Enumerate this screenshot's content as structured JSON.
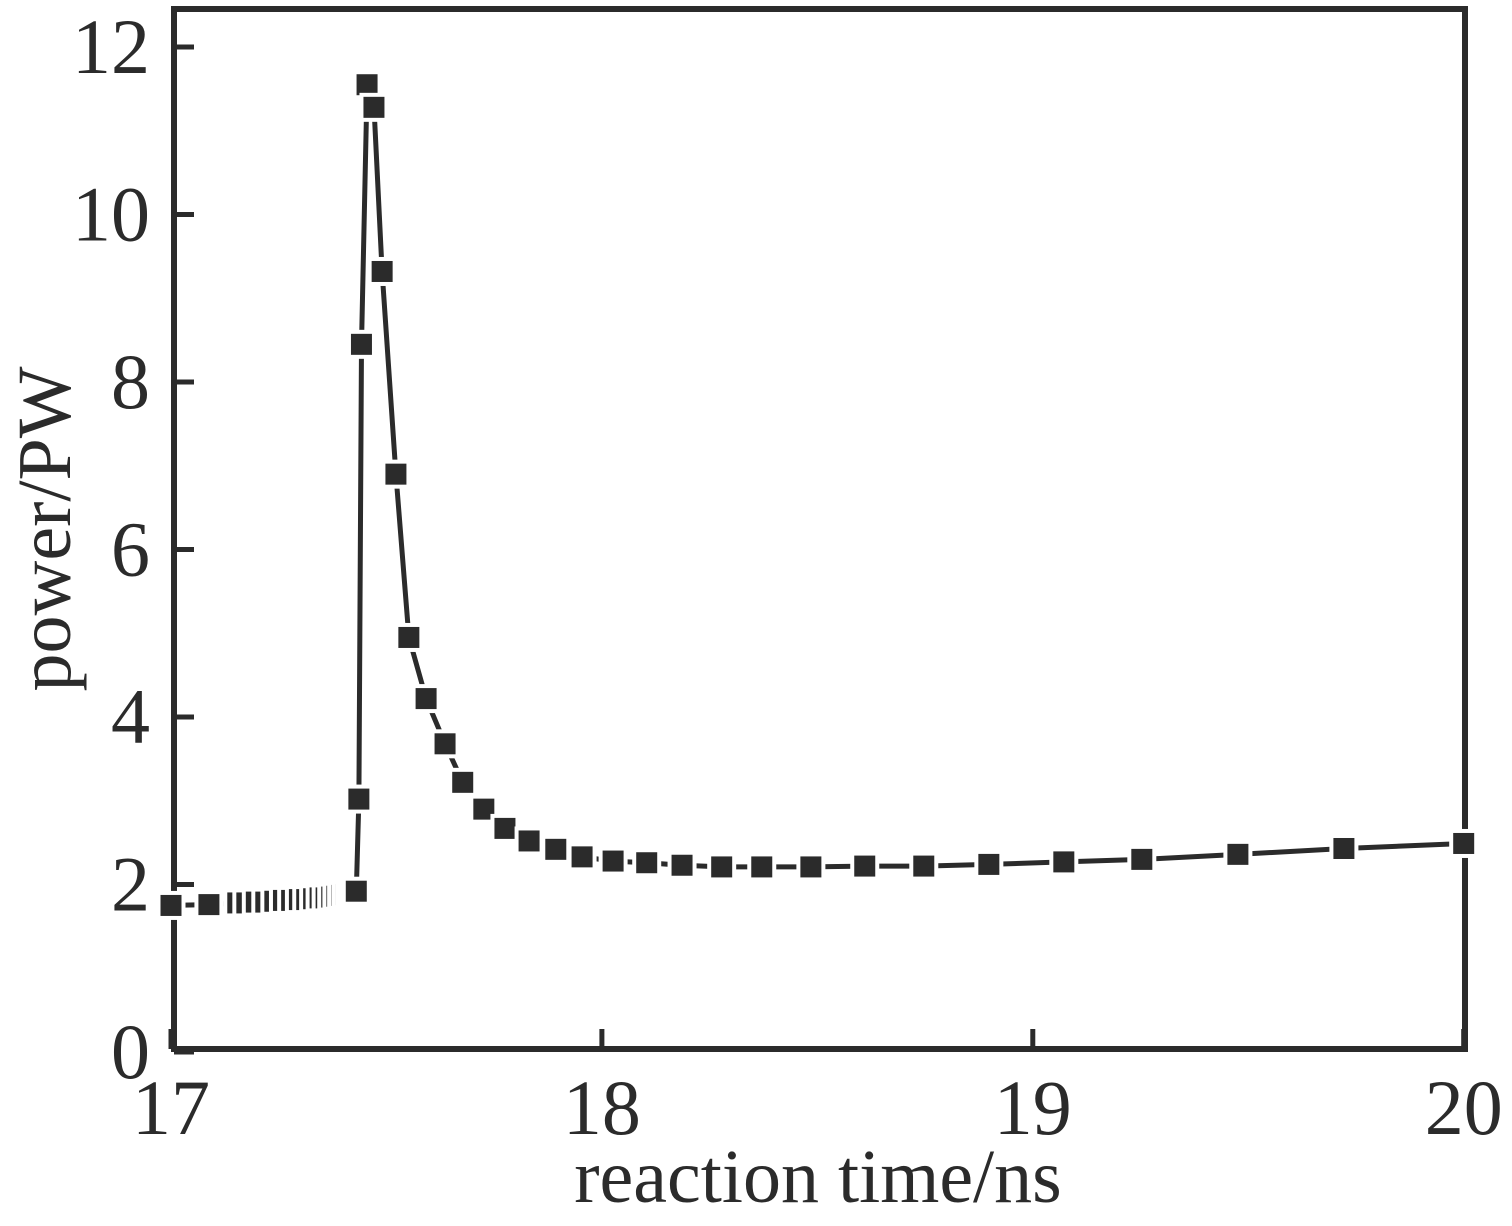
{
  "figure": {
    "xlabel": "reaction time/ns",
    "ylabel": "power/PW"
  },
  "chart_data": {
    "type": "line",
    "marker": "square",
    "line_style": "solid, broken at markers",
    "title": "",
    "xlabel": "reaction time/ns",
    "ylabel": "power/PW",
    "xlim": [
      17,
      20.01
    ],
    "ylim": [
      0,
      12.49
    ],
    "xticks": [
      17,
      18,
      19,
      20
    ],
    "yticks": [
      0,
      2,
      4,
      6,
      8,
      10,
      12
    ],
    "grid": false,
    "legend": null,
    "colors": {
      "marker": "#2b2b2b",
      "marker_halo": "#ffffff",
      "line": "#2b2b2b",
      "frame": "#2b2b2b",
      "text": "#2b2b2b",
      "background": "#ffffff"
    },
    "series": [
      {
        "name": "power",
        "points": [
          [
            17.0,
            1.75
          ],
          [
            17.088,
            1.76
          ],
          [
            17.155,
            1.78
          ],
          [
            17.176,
            1.78
          ],
          [
            17.198,
            1.79
          ],
          [
            17.22,
            1.79
          ],
          [
            17.241,
            1.8
          ],
          [
            17.261,
            1.81
          ],
          [
            17.28,
            1.81
          ],
          [
            17.298,
            1.82
          ],
          [
            17.315,
            1.82
          ],
          [
            17.331,
            1.83
          ],
          [
            17.346,
            1.84
          ],
          [
            17.36,
            1.84
          ],
          [
            17.373,
            1.85
          ],
          [
            17.385,
            1.86
          ],
          [
            17.396,
            1.87
          ],
          [
            17.406,
            1.88
          ],
          [
            17.415,
            1.89
          ],
          [
            17.423,
            1.9
          ],
          [
            17.43,
            1.92
          ],
          [
            17.436,
            3.02
          ],
          [
            17.442,
            8.45
          ],
          [
            17.455,
            11.55
          ],
          [
            17.471,
            11.28
          ],
          [
            17.49,
            9.32
          ],
          [
            17.522,
            6.9
          ],
          [
            17.552,
            4.95
          ],
          [
            17.592,
            4.22
          ],
          [
            17.636,
            3.68
          ],
          [
            17.677,
            3.22
          ],
          [
            17.726,
            2.9
          ],
          [
            17.775,
            2.67
          ],
          [
            17.831,
            2.52
          ],
          [
            17.893,
            2.42
          ],
          [
            17.954,
            2.33
          ],
          [
            18.026,
            2.28
          ],
          [
            18.104,
            2.26
          ],
          [
            18.186,
            2.23
          ],
          [
            18.278,
            2.21
          ],
          [
            18.371,
            2.21
          ],
          [
            18.485,
            2.21
          ],
          [
            18.61,
            2.22
          ],
          [
            18.747,
            2.22
          ],
          [
            18.898,
            2.24
          ],
          [
            19.072,
            2.27
          ],
          [
            19.253,
            2.3
          ],
          [
            19.476,
            2.36
          ],
          [
            19.722,
            2.43
          ],
          [
            20.0,
            2.49
          ]
        ]
      }
    ]
  }
}
